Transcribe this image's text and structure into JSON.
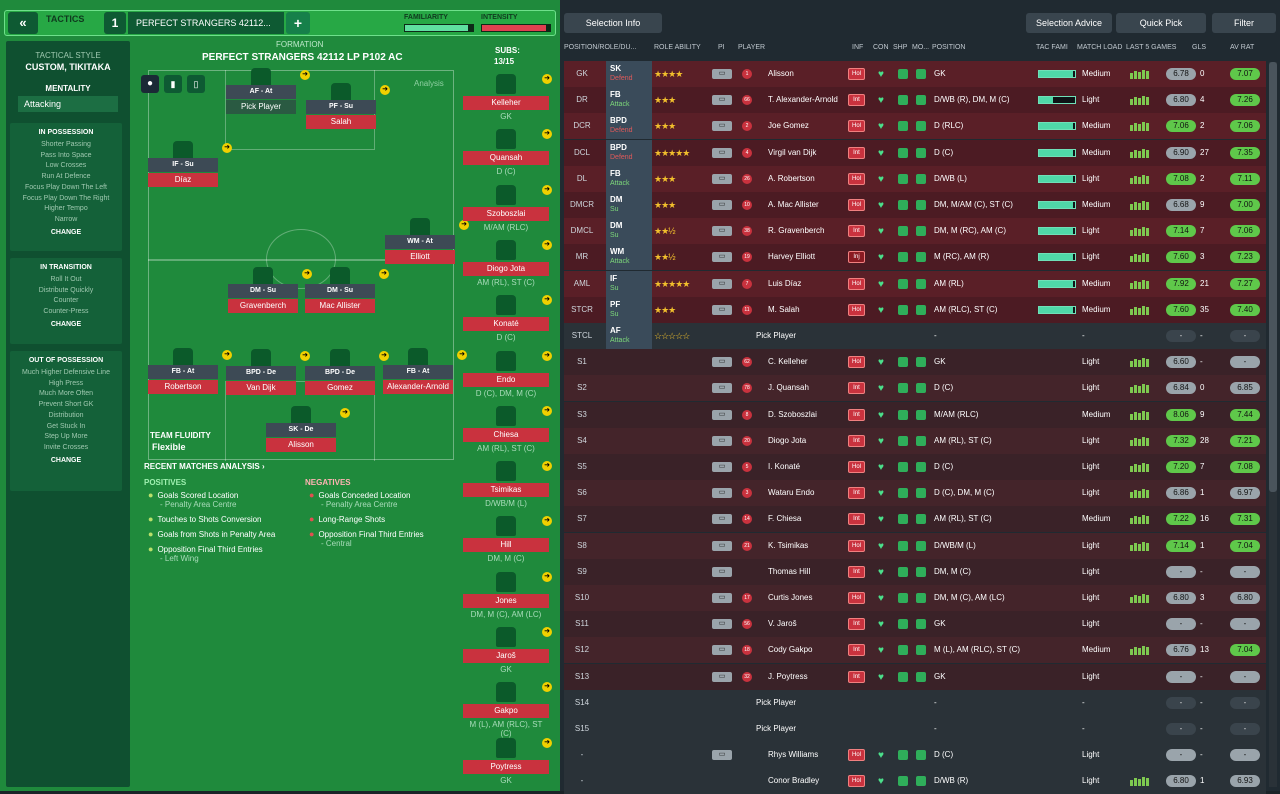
{
  "topbar": {
    "back": "«",
    "title": "TACTICS",
    "number": "1",
    "tactic_name": "PERFECT STRANGERS 42112...",
    "add": "+",
    "familiarity": "FAMILIARITY",
    "intensity": "INTENSITY"
  },
  "side": {
    "style_label": "TACTICAL STYLE",
    "style_value": "CUSTOM, TIKITAKA",
    "mentality_label": "MENTALITY",
    "mentality_value": "Attacking",
    "in_possession": {
      "title": "IN POSSESSION",
      "items": [
        "Shorter Passing",
        "Pass Into Space",
        "Low Crosses",
        "Run At Defence",
        "Focus Play Down The Left",
        "Focus Play Down The Right",
        "Higher Tempo",
        "Narrow"
      ],
      "change": "CHANGE"
    },
    "in_transition": {
      "title": "IN TRANSITION",
      "items": [
        "Roll It Out",
        "Distribute Quickly",
        "Counter",
        "Counter-Press"
      ],
      "change": "CHANGE"
    },
    "out_of_possession": {
      "title": "OUT OF POSSESSION",
      "items": [
        "Much Higher Defensive Line",
        "High Press",
        "Much More Often",
        "Prevent Short GK",
        "Distribution",
        "Get Stuck In",
        "Step Up More",
        "Invite Crosses"
      ],
      "change": "CHANGE"
    }
  },
  "formation": {
    "label": "FORMATION",
    "name": "PERFECT STRANGERS 42112 LP P102 AC",
    "subs_label": "SUBS:",
    "subs_count": "13/15",
    "analysis": "Analysis",
    "fluidity_label": "TEAM FLUIDITY",
    "fluidity_value": "Flexible",
    "players": [
      {
        "role": "AF - At",
        "name": "Pick Player"
      },
      {
        "role": "PF - Su",
        "name": "Salah"
      },
      {
        "role": "IF - Su",
        "name": "Díaz"
      },
      {
        "role": "WM - At",
        "name": "Elliott"
      },
      {
        "role": "DM - Su",
        "name": "Gravenberch"
      },
      {
        "role": "DM - Su",
        "name": "Mac Allister"
      },
      {
        "role": "FB - At",
        "name": "Robertson"
      },
      {
        "role": "BPD - De",
        "name": "Van Dijk"
      },
      {
        "role": "BPD - De",
        "name": "Gomez"
      },
      {
        "role": "FB - At",
        "name": "Alexander-Arnold"
      },
      {
        "role": "SK - De",
        "name": "Alisson"
      }
    ]
  },
  "subs": [
    {
      "name": "Kelleher",
      "pos": "GK"
    },
    {
      "name": "Quansah",
      "pos": "D (C)"
    },
    {
      "name": "Szoboszlai",
      "pos": "M/AM (RLC)"
    },
    {
      "name": "Diogo Jota",
      "pos": "AM (RL), ST (C)"
    },
    {
      "name": "Konaté",
      "pos": "D (C)"
    },
    {
      "name": "Endo",
      "pos": "D (C), DM, M (C)"
    },
    {
      "name": "Chiesa",
      "pos": "AM (RL), ST (C)"
    },
    {
      "name": "Tsimikas",
      "pos": "D/WB/M (L)"
    },
    {
      "name": "Hill",
      "pos": "DM, M (C)"
    },
    {
      "name": "Jones",
      "pos": "DM, M (C), AM (LC)"
    },
    {
      "name": "Jaroš",
      "pos": "GK"
    },
    {
      "name": "Gakpo",
      "pos": "M (L), AM (RLC), ST (C)"
    },
    {
      "name": "Poytress",
      "pos": "GK"
    }
  ],
  "analysis": {
    "title": "RECENT MATCHES ANALYSIS ›",
    "pos_title": "POSITIVES",
    "neg_title": "NEGATIVES",
    "positives": [
      {
        "t": "Goals Scored Location",
        "s": "- Penalty Area Centre"
      },
      {
        "t": "Touches to Shots Conversion",
        "s": ""
      },
      {
        "t": "Goals from Shots in Penalty Area",
        "s": ""
      },
      {
        "t": "Opposition Final Third Entries",
        "s": "- Left Wing"
      }
    ],
    "negatives": [
      {
        "t": "Goals Conceded Location",
        "s": "- Penalty Area Centre"
      },
      {
        "t": "Long-Range Shots",
        "s": ""
      },
      {
        "t": "Opposition Final Third Entries",
        "s": "- Central"
      }
    ]
  },
  "right": {
    "selection_info": "Selection Info",
    "selection_advice": "Selection Advice",
    "quick_pick": "Quick Pick",
    "filter": "Filter",
    "headers": [
      "POSITION/ROLE/DU...",
      "ROLE ABILITY",
      "PI",
      "PLAYER",
      "INF",
      "CON",
      "SHP",
      "MO...",
      "POSITION",
      "TAC FAMI",
      "MATCH LOAD",
      "LAST 5 GAMES",
      "GLS",
      "AV RAT"
    ],
    "rows": [
      {
        "pos": "GK",
        "role": "SK",
        "duty": "Defend",
        "stars": "★★★★",
        "num": "1",
        "player": "Alisson",
        "inf": "Hol",
        "position": "GK",
        "load": "Medium",
        "rating": "6.78",
        "gls": "0",
        "av": "7.07"
      },
      {
        "pos": "DR",
        "role": "FB",
        "duty": "Attack",
        "stars": "★★★",
        "num": "66",
        "player": "T. Alexander-Arnold",
        "inf": "Int",
        "position": "D/WB (R), DM, M (C)",
        "load": "Light",
        "rating": "6.80",
        "gls": "4",
        "av": "7.26"
      },
      {
        "pos": "DCR",
        "role": "BPD",
        "duty": "Defend",
        "stars": "★★★",
        "num": "2",
        "player": "Joe Gomez",
        "inf": "Hol",
        "position": "D (RLC)",
        "load": "Medium",
        "rating": "7.06",
        "gls": "2",
        "av": "7.06"
      },
      {
        "pos": "DCL",
        "role": "BPD",
        "duty": "Defend",
        "stars": "★★★★★",
        "num": "4",
        "player": "Virgil van Dijk",
        "inf": "Int",
        "position": "D (C)",
        "load": "Medium",
        "rating": "6.90",
        "gls": "27",
        "av": "7.35"
      },
      {
        "pos": "DL",
        "role": "FB",
        "duty": "Attack",
        "stars": "★★★",
        "num": "26",
        "player": "A. Robertson",
        "inf": "Hol",
        "position": "D/WB (L)",
        "load": "Light",
        "rating": "7.08",
        "gls": "2",
        "av": "7.11"
      },
      {
        "pos": "DMCR",
        "role": "DM",
        "duty": "Su",
        "stars": "★★★",
        "num": "10",
        "player": "A. Mac Allister",
        "inf": "Hol",
        "position": "DM, M/AM (C), ST (C)",
        "load": "Medium",
        "rating": "6.68",
        "gls": "9",
        "av": "7.00"
      },
      {
        "pos": "DMCL",
        "role": "DM",
        "duty": "Su",
        "stars": "★★½",
        "num": "38",
        "player": "R. Gravenberch",
        "inf": "Int",
        "position": "DM, M (RC), AM (C)",
        "load": "Light",
        "rating": "7.14",
        "gls": "7",
        "av": "7.06"
      },
      {
        "pos": "MR",
        "role": "WM",
        "duty": "Attack",
        "stars": "★★½",
        "num": "19",
        "player": "Harvey Elliott",
        "inf": "Inj",
        "position": "M (RC), AM (R)",
        "load": "Light",
        "rating": "7.60",
        "gls": "3",
        "av": "7.23"
      },
      {
        "pos": "AML",
        "role": "IF",
        "duty": "Su",
        "stars": "★★★★★",
        "num": "7",
        "player": "Luis Díaz",
        "inf": "Hol",
        "position": "AM (RL)",
        "load": "Medium",
        "rating": "7.92",
        "gls": "21",
        "av": "7.27"
      },
      {
        "pos": "STCR",
        "role": "PF",
        "duty": "Su",
        "stars": "★★★",
        "num": "11",
        "player": "M. Salah",
        "inf": "Hol",
        "position": "AM (RLC), ST (C)",
        "load": "Medium",
        "rating": "7.60",
        "gls": "35",
        "av": "7.40"
      },
      {
        "pos": "STCL",
        "role": "AF",
        "duty": "Attack",
        "stars": "☆☆☆☆☆",
        "num": "",
        "player": "Pick Player",
        "inf": "",
        "position": "-",
        "load": "-",
        "rating": "-",
        "gls": "-",
        "av": "-"
      },
      {
        "pos": "S1",
        "role": "",
        "duty": "",
        "stars": "",
        "num": "62",
        "player": "C. Kelleher",
        "inf": "Hol",
        "position": "GK",
        "load": "Light",
        "rating": "6.60",
        "gls": "-",
        "av": "-"
      },
      {
        "pos": "S2",
        "role": "",
        "duty": "",
        "stars": "",
        "num": "78",
        "player": "J. Quansah",
        "inf": "Int",
        "position": "D (C)",
        "load": "Light",
        "rating": "6.84",
        "gls": "0",
        "av": "6.85"
      },
      {
        "pos": "S3",
        "role": "",
        "duty": "",
        "stars": "",
        "num": "8",
        "player": "D. Szoboszlai",
        "inf": "Int",
        "position": "M/AM (RLC)",
        "load": "Medium",
        "rating": "8.06",
        "gls": "9",
        "av": "7.44"
      },
      {
        "pos": "S4",
        "role": "",
        "duty": "",
        "stars": "",
        "num": "20",
        "player": "Diogo Jota",
        "inf": "Int",
        "position": "AM (RL), ST (C)",
        "load": "Light",
        "rating": "7.32",
        "gls": "28",
        "av": "7.21"
      },
      {
        "pos": "S5",
        "role": "",
        "duty": "",
        "stars": "",
        "num": "5",
        "player": "I. Konaté",
        "inf": "Hol",
        "position": "D (C)",
        "load": "Light",
        "rating": "7.20",
        "gls": "7",
        "av": "7.08"
      },
      {
        "pos": "S6",
        "role": "",
        "duty": "",
        "stars": "",
        "num": "3",
        "player": "Wataru Endo",
        "inf": "Int",
        "position": "D (C), DM, M (C)",
        "load": "Light",
        "rating": "6.86",
        "gls": "1",
        "av": "6.97"
      },
      {
        "pos": "S7",
        "role": "",
        "duty": "",
        "stars": "",
        "num": "14",
        "player": "F. Chiesa",
        "inf": "Int",
        "position": "AM (RL), ST (C)",
        "load": "Medium",
        "rating": "7.22",
        "gls": "16",
        "av": "7.31"
      },
      {
        "pos": "S8",
        "role": "",
        "duty": "",
        "stars": "",
        "num": "21",
        "player": "K. Tsimikas",
        "inf": "Hol",
        "position": "D/WB/M (L)",
        "load": "Light",
        "rating": "7.14",
        "gls": "1",
        "av": "7.04"
      },
      {
        "pos": "S9",
        "role": "",
        "duty": "",
        "stars": "",
        "num": "",
        "player": "Thomas Hill",
        "inf": "Int",
        "position": "DM, M (C)",
        "load": "Light",
        "rating": "-",
        "gls": "-",
        "av": "-"
      },
      {
        "pos": "S10",
        "role": "",
        "duty": "",
        "stars": "",
        "num": "17",
        "player": "Curtis Jones",
        "inf": "Hol",
        "position": "DM, M (C), AM (LC)",
        "load": "Light",
        "rating": "6.80",
        "gls": "3",
        "av": "6.80"
      },
      {
        "pos": "S11",
        "role": "",
        "duty": "",
        "stars": "",
        "num": "56",
        "player": "V. Jaroš",
        "inf": "Int",
        "position": "GK",
        "load": "Light",
        "rating": "-",
        "gls": "-",
        "av": "-"
      },
      {
        "pos": "S12",
        "role": "",
        "duty": "",
        "stars": "",
        "num": "18",
        "player": "Cody Gakpo",
        "inf": "Int",
        "position": "M (L), AM (RLC), ST (C)",
        "load": "Medium",
        "rating": "6.76",
        "gls": "13",
        "av": "7.04"
      },
      {
        "pos": "S13",
        "role": "",
        "duty": "",
        "stars": "",
        "num": "32",
        "player": "J. Poytress",
        "inf": "Int",
        "position": "GK",
        "load": "Light",
        "rating": "-",
        "gls": "-",
        "av": "-"
      },
      {
        "pos": "S14",
        "role": "",
        "duty": "",
        "stars": "",
        "num": "",
        "player": "Pick Player",
        "inf": "",
        "position": "-",
        "load": "-",
        "rating": "-",
        "gls": "-",
        "av": "-"
      },
      {
        "pos": "S15",
        "role": "",
        "duty": "",
        "stars": "",
        "num": "",
        "player": "Pick Player",
        "inf": "",
        "position": "-",
        "load": "-",
        "rating": "-",
        "gls": "-",
        "av": "-"
      },
      {
        "pos": "-",
        "role": "",
        "duty": "",
        "stars": "",
        "num": "",
        "player": "Rhys Williams",
        "inf": "Hol",
        "position": "D (C)",
        "load": "Light",
        "rating": "-",
        "gls": "-",
        "av": "-"
      },
      {
        "pos": "-",
        "role": "",
        "duty": "",
        "stars": "",
        "num": "",
        "player": "Conor Bradley",
        "inf": "Hol",
        "position": "D/WB (R)",
        "load": "Light",
        "rating": "6.80",
        "gls": "1",
        "av": "6.93"
      }
    ]
  }
}
